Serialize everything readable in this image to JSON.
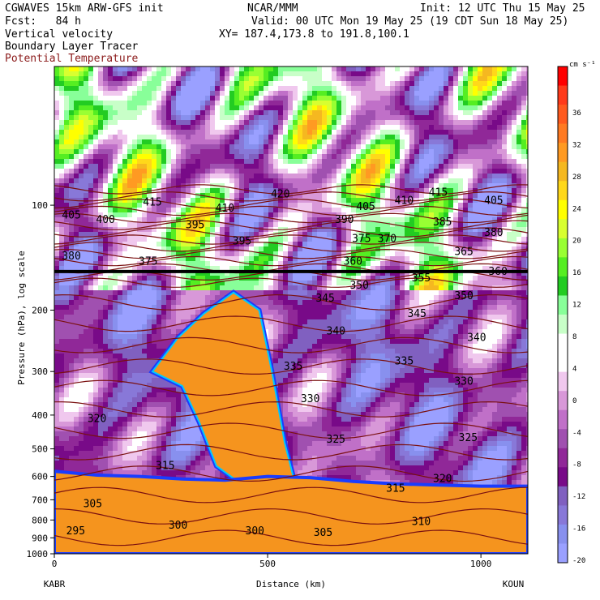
{
  "header": {
    "line1_left": "CGWAVES 15km ARW-GFS init",
    "line1_mid": "NCAR/MMM",
    "line1_right": "Init: 12 UTC Thu 15 May 25",
    "line2_left": "Fcst:   84 h",
    "line2_right": "Valid: 00 UTC Mon 19 May 25 (19 CDT Sun 18 May 25)",
    "line3_left": "Vertical velocity",
    "line3_right": "XY= 187.4,173.8 to 191.8,100.1",
    "line4_left": "Boundary Layer Tracer",
    "line5_left": "Potential Temperature"
  },
  "colors": {
    "theta_contour": "#7a1010",
    "tropopause_line": "#000000",
    "tracer_low": "#f5941e",
    "tracer_edge_blue": "#1a3cff",
    "tracer_edge_cyan": "#00c8ff",
    "background": "#ffffff"
  },
  "chart_data": {
    "type": "heatmap",
    "title": "",
    "xlabel": "Distance (km)",
    "ylabel": "Pressure (hPa), log scale",
    "x_range": [
      0,
      1110
    ],
    "y_range": [
      1000,
      40
    ],
    "y_scale": "log",
    "x_ticks": [
      0,
      500,
      1000
    ],
    "y_ticks": [
      100,
      200,
      300,
      400,
      500,
      600,
      700,
      800,
      900,
      1000
    ],
    "endpoint_left": "KABR",
    "endpoint_right": "KOUN",
    "colorbar": {
      "unit": "cm s⁻¹",
      "ticks": [
        36,
        32,
        28,
        24,
        20,
        16,
        12,
        8,
        4,
        0,
        -4,
        -8,
        -12,
        -16,
        -20
      ],
      "colors": [
        "#ff0000",
        "#ff3a1a",
        "#ff5a1e",
        "#ff7a22",
        "#ff9a22",
        "#f5b820",
        "#ffd81a",
        "#ffff00",
        "#d8ff30",
        "#99ff33",
        "#55ee22",
        "#22cc22",
        "#88ff99",
        "#c8ffc8",
        "#ffffff",
        "#ffffff",
        "#f0c8ee",
        "#d898d8",
        "#c070c8",
        "#a050b0",
        "#902898",
        "#780a88",
        "#8060c0",
        "#8878d8",
        "#8890ee",
        "#9aa0ff"
      ]
    },
    "theta_contours": [
      {
        "label": "295",
        "x": 50,
        "p": 860
      },
      {
        "label": "300",
        "x": 290,
        "p": 830
      },
      {
        "label": "300",
        "x": 470,
        "p": 860
      },
      {
        "label": "305",
        "x": 90,
        "p": 720
      },
      {
        "label": "305",
        "x": 630,
        "p": 870
      },
      {
        "label": "310",
        "x": 860,
        "p": 810
      },
      {
        "label": "315",
        "x": 260,
        "p": 560
      },
      {
        "label": "315",
        "x": 800,
        "p": 650
      },
      {
        "label": "320",
        "x": 100,
        "p": 410
      },
      {
        "label": "320",
        "x": 910,
        "p": 610
      },
      {
        "label": "325",
        "x": 660,
        "p": 470
      },
      {
        "label": "325",
        "x": 970,
        "p": 465
      },
      {
        "label": "330",
        "x": 600,
        "p": 360
      },
      {
        "label": "330",
        "x": 960,
        "p": 320
      },
      {
        "label": "335",
        "x": 560,
        "p": 290
      },
      {
        "label": "335",
        "x": 820,
        "p": 280
      },
      {
        "label": "340",
        "x": 660,
        "p": 230
      },
      {
        "label": "340",
        "x": 990,
        "p": 240
      },
      {
        "label": "345",
        "x": 635,
        "p": 185
      },
      {
        "label": "345",
        "x": 850,
        "p": 205
      },
      {
        "label": "350",
        "x": 715,
        "p": 170
      },
      {
        "label": "350",
        "x": 960,
        "p": 182
      },
      {
        "label": "355",
        "x": 860,
        "p": 162
      },
      {
        "label": "360",
        "x": 700,
        "p": 145
      },
      {
        "label": "360",
        "x": 1040,
        "p": 155
      },
      {
        "label": "365",
        "x": 960,
        "p": 136
      },
      {
        "label": "370",
        "x": 780,
        "p": 125
      },
      {
        "label": "375",
        "x": 220,
        "p": 145
      },
      {
        "label": "375",
        "x": 720,
        "p": 125
      },
      {
        "label": "380",
        "x": 40,
        "p": 140
      },
      {
        "label": "380",
        "x": 1030,
        "p": 120
      },
      {
        "label": "385",
        "x": 910,
        "p": 112
      },
      {
        "label": "390",
        "x": 680,
        "p": 110
      },
      {
        "label": "395",
        "x": 330,
        "p": 114
      },
      {
        "label": "395",
        "x": 440,
        "p": 127
      },
      {
        "label": "400",
        "x": 120,
        "p": 110
      },
      {
        "label": "405",
        "x": 40,
        "p": 107
      },
      {
        "label": "405",
        "x": 730,
        "p": 101
      },
      {
        "label": "405",
        "x": 1030,
        "p": 97
      },
      {
        "label": "410",
        "x": 400,
        "p": 102
      },
      {
        "label": "410",
        "x": 820,
        "p": 97
      },
      {
        "label": "415",
        "x": 230,
        "p": 98
      },
      {
        "label": "415",
        "x": 900,
        "p": 92
      },
      {
        "label": "420",
        "x": 530,
        "p": 93
      }
    ],
    "tropopause_p": 155
  }
}
